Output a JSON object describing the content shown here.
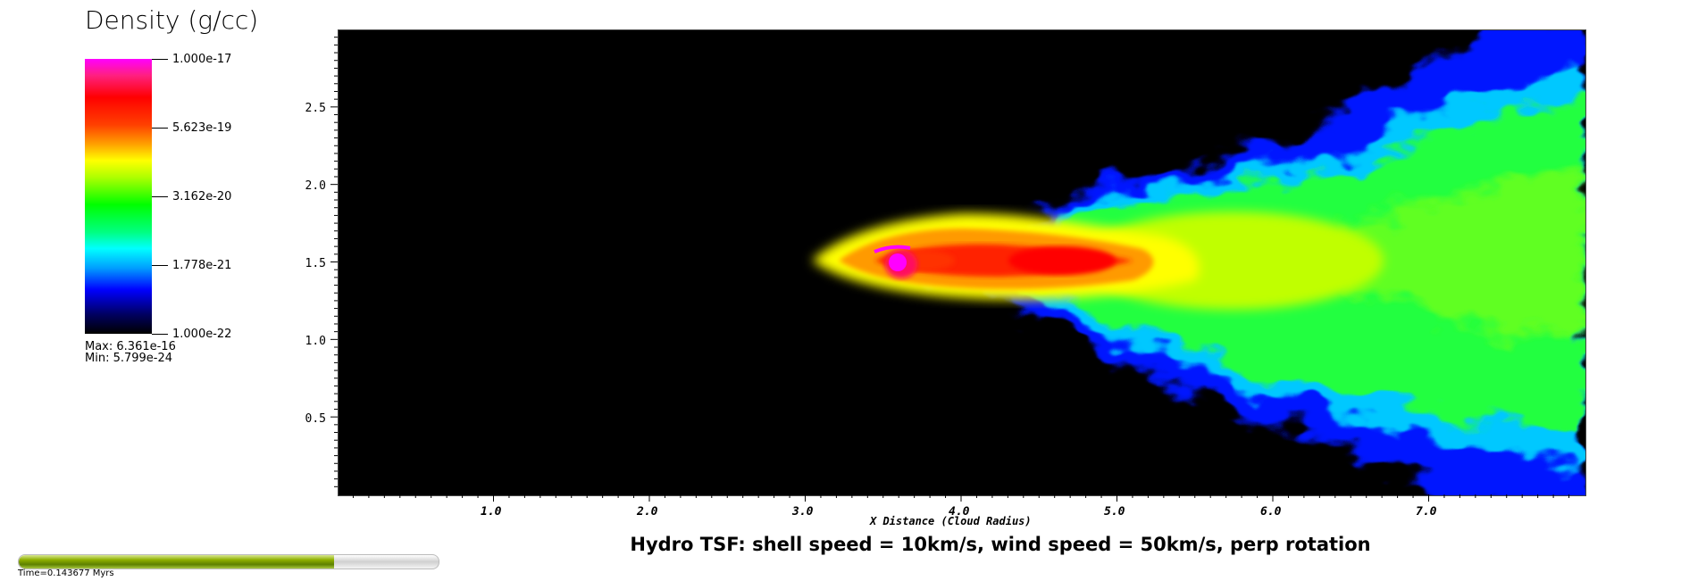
{
  "legend": {
    "title": "Density (g/cc)",
    "ticks": [
      "1.000e-17",
      "5.623e-19",
      "3.162e-20",
      "1.778e-21",
      "1.000e-22"
    ],
    "max_label": "Max:  6.361e-16",
    "min_label": "Min:  5.799e-24"
  },
  "plot": {
    "title": "Hydro TSF: shell speed = 10km/s, wind speed = 50km/s, perp rotation",
    "xlabel": "X Distance (Cloud Radius)",
    "x_ticks": [
      "1.0",
      "2.0",
      "3.0",
      "4.0",
      "5.0",
      "6.0",
      "7.0"
    ],
    "y_ticks": [
      "2.5",
      "2.0",
      "1.5",
      "1.0",
      "0.5"
    ],
    "x_range": [
      0,
      8
    ],
    "y_range": [
      0,
      3
    ]
  },
  "time": {
    "label": "Time=0.143677 Myrs",
    "progress": 0.75,
    "fill_color": "#7a9c00"
  }
}
